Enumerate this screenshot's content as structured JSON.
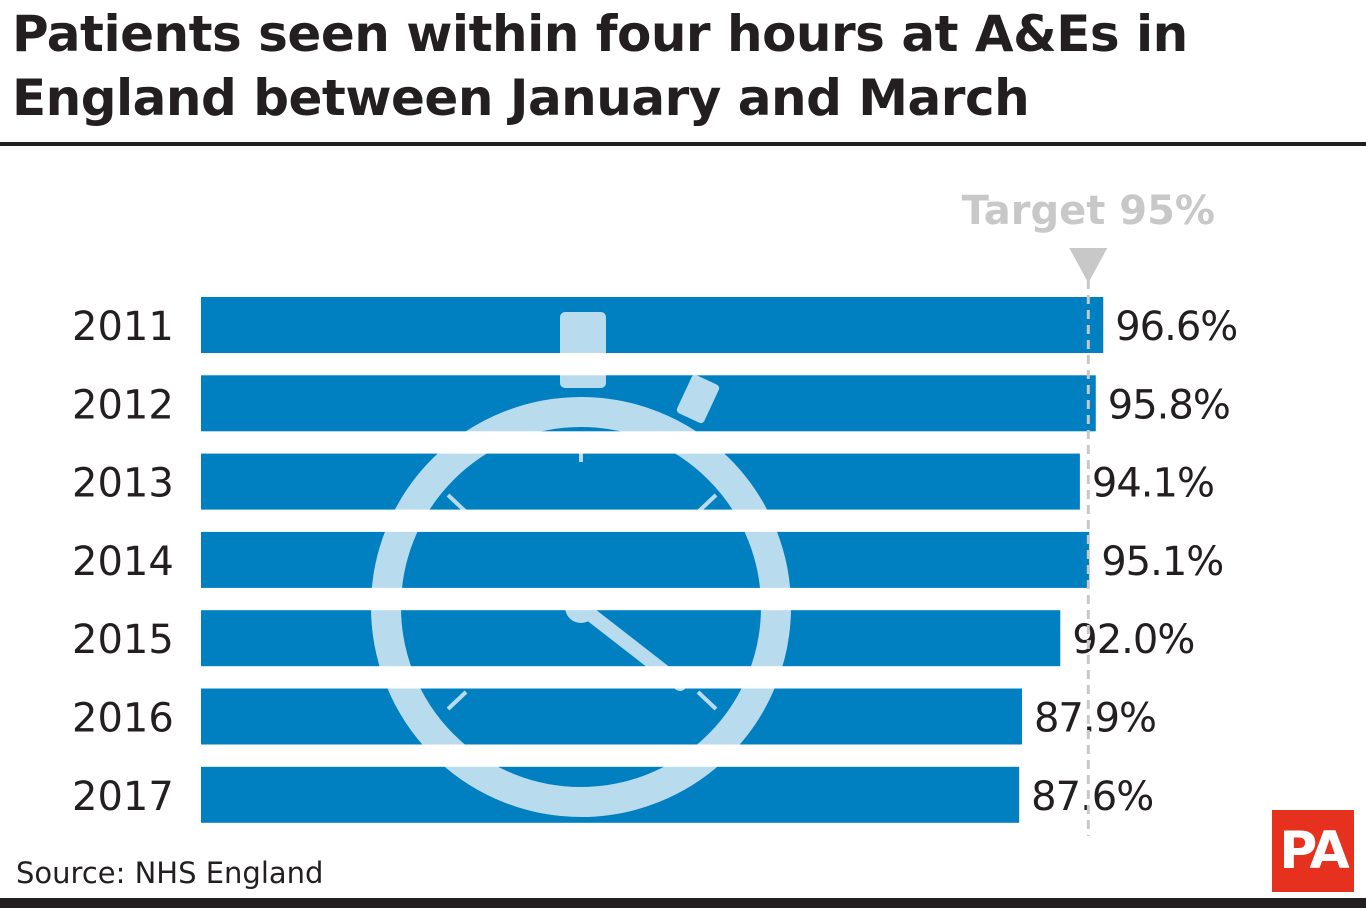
{
  "title": "Patients seen within four hours at A&Es in England between January and March",
  "source": "Source: NHS England",
  "logo_text": "PA",
  "colors": {
    "bar": "#0080c0",
    "target_line": "#c8c8c8",
    "text": "#231f20"
  },
  "chart_data": {
    "type": "bar",
    "orientation": "horizontal",
    "categories": [
      "2011",
      "2012",
      "2013",
      "2014",
      "2015",
      "2016",
      "2017"
    ],
    "values": [
      96.6,
      95.8,
      94.1,
      95.1,
      92.0,
      87.9,
      87.6
    ],
    "value_labels": [
      "96.6%",
      "95.8%",
      "94.1%",
      "95.1%",
      "92.0%",
      "87.9%",
      "87.6%"
    ],
    "target": {
      "value": 95,
      "label": "Target 95%"
    },
    "xlabel": "",
    "ylabel": "",
    "grid": false,
    "decoration": "stopwatch-icon"
  }
}
